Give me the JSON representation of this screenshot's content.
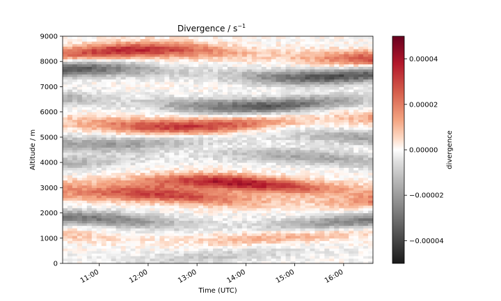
{
  "chart_data": {
    "type": "heatmap",
    "title": "Divergence / s",
    "title_superscript": "−1",
    "xlabel": "Time (UTC)",
    "ylabel": "Altitude / m",
    "colorbar_label": "divergence",
    "colormap": "RdGy_r",
    "xlim_hours": [
      10.25,
      16.6
    ],
    "ylim": [
      0,
      9000
    ],
    "clim": [
      -5e-05,
      5e-05
    ],
    "x_ticks": [
      {
        "value": 11,
        "label": "11:00"
      },
      {
        "value": 12,
        "label": "12:00"
      },
      {
        "value": 13,
        "label": "13:00"
      },
      {
        "value": 14,
        "label": "14:00"
      },
      {
        "value": 15,
        "label": "15:00"
      },
      {
        "value": 16,
        "label": "16:00"
      }
    ],
    "y_ticks": [
      0,
      1000,
      2000,
      3000,
      4000,
      5000,
      6000,
      7000,
      8000,
      9000
    ],
    "colorbar_ticks": [
      {
        "value": 4e-05,
        "label": "0.00004"
      },
      {
        "value": 2e-05,
        "label": "0.00002"
      },
      {
        "value": 0,
        "label": "0.00000"
      },
      {
        "value": -2e-05,
        "label": "−0.00002"
      },
      {
        "value": -4e-05,
        "label": "−0.00004"
      }
    ],
    "bands": [
      {
        "altitude": 8300,
        "value": 2.8e-05
      },
      {
        "altitude": 7550,
        "value": -3e-05
      },
      {
        "altitude": 6400,
        "value": -2.8e-05
      },
      {
        "altitude": 5600,
        "value": 2.6e-05
      },
      {
        "altitude": 4900,
        "value": -1.6e-05
      },
      {
        "altitude": 4150,
        "value": -1.4e-05
      },
      {
        "altitude": 3100,
        "value": 3.2e-05
      },
      {
        "altitude": 2600,
        "value": 2.4e-05
      },
      {
        "altitude": 1650,
        "value": -2.2e-05
      },
      {
        "altitude": 1100,
        "value": 1e-05
      },
      {
        "altitude": 300,
        "value": -8e-06
      }
    ],
    "grid": false
  }
}
